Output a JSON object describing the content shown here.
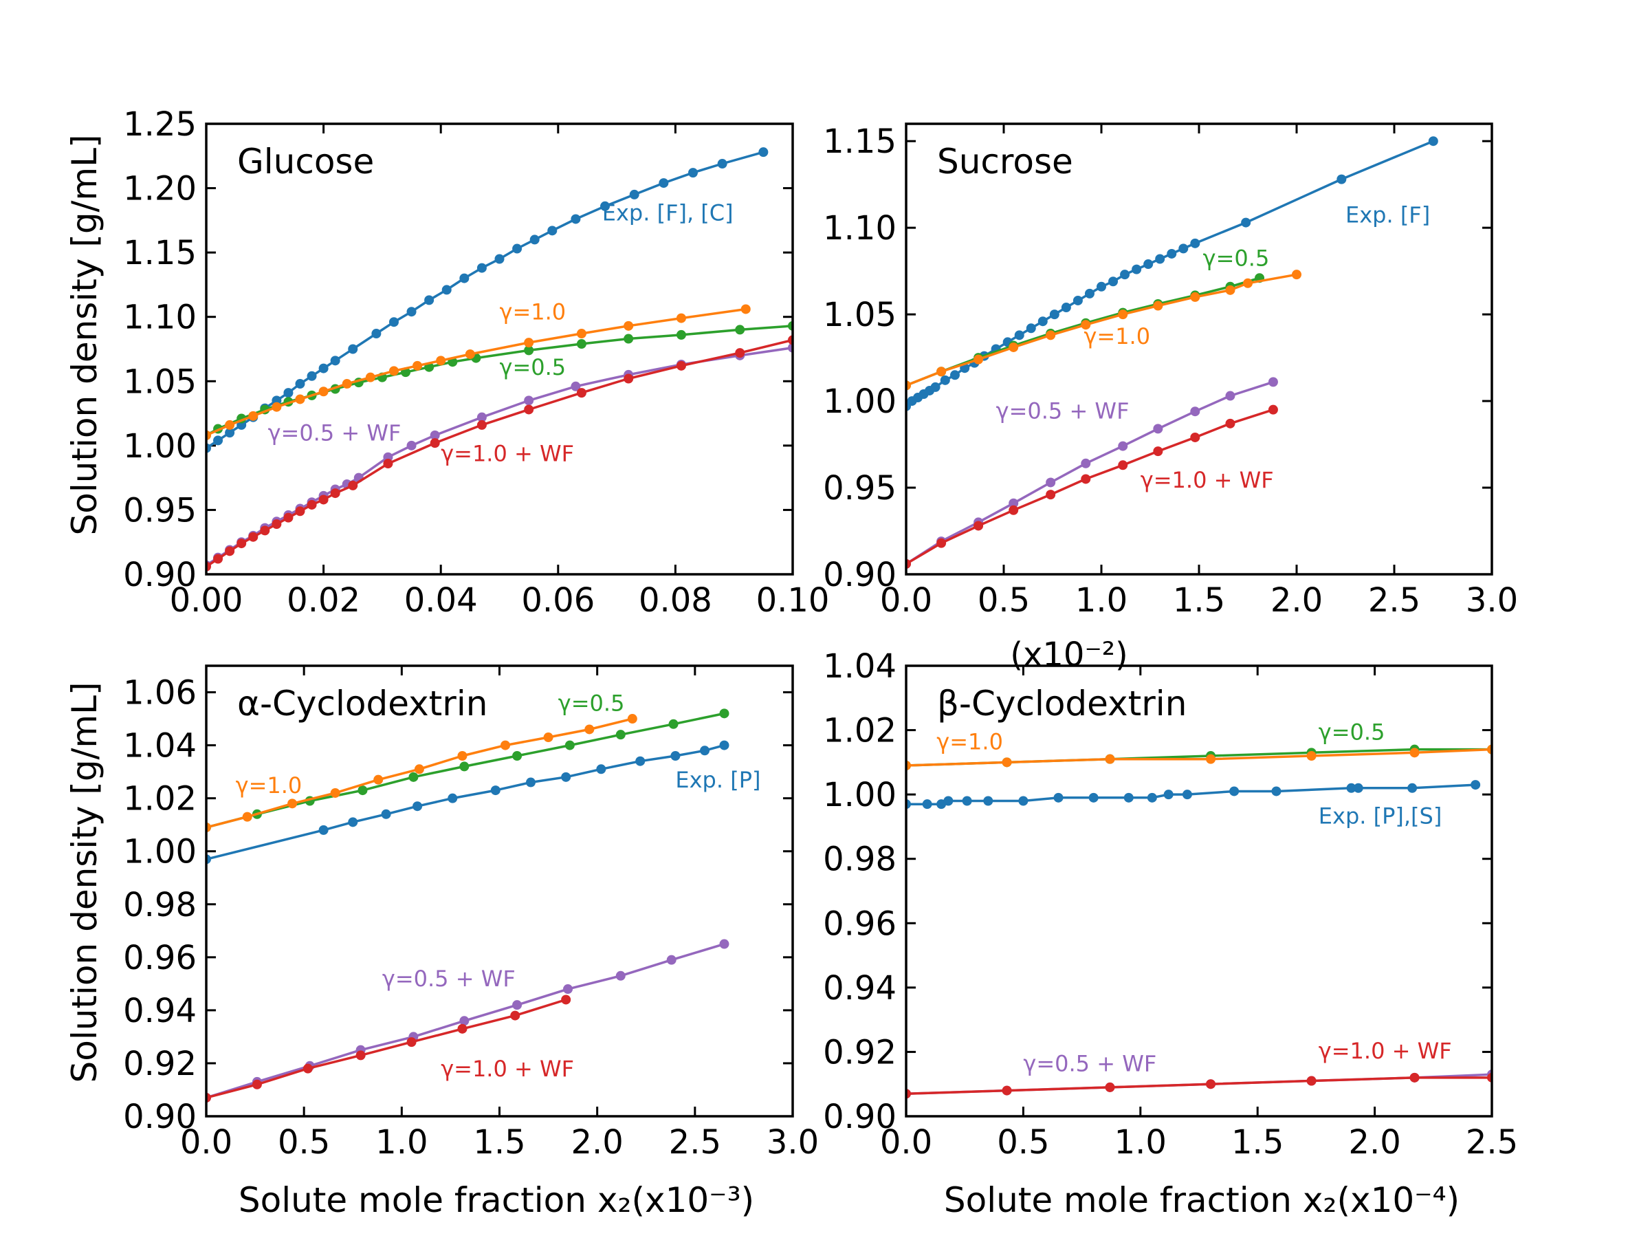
{
  "figure": {
    "ylabel_top": "Solution density [g/mL]",
    "ylabel_bottom": "Solution density [g/mL]",
    "xlabel_left": "Solute mole fraction x₂(x10⁻³)",
    "xlabel_right": "Solute mole fraction x₂(x10⁻⁴)",
    "sucrose_multiplier": "(x10⁻²)"
  },
  "colors": {
    "exp": "#1f77b4",
    "g10": "#ff7f0e",
    "g05": "#2ca02c",
    "g10wf": "#d62728",
    "g05wf": "#9467bd"
  },
  "chart_data": [
    {
      "type": "line",
      "title": "Glucose",
      "xlim": [
        0,
        0.1
      ],
      "ylim": [
        0.9,
        1.25
      ],
      "xticks": [
        "0.00",
        "0.02",
        "0.04",
        "0.06",
        "0.08",
        "0.10"
      ],
      "yticks": [
        "0.90",
        "0.95",
        "1.00",
        "1.05",
        "1.10",
        "1.15",
        "1.20",
        "1.25"
      ],
      "series": [
        {
          "name": "Exp. [F], [C]",
          "color_key": "exp",
          "x": [
            0.0,
            0.002,
            0.004,
            0.006,
            0.008,
            0.01,
            0.012,
            0.014,
            0.016,
            0.018,
            0.02,
            0.022,
            0.025,
            0.029,
            0.032,
            0.035,
            0.038,
            0.041,
            0.044,
            0.047,
            0.05,
            0.053,
            0.056,
            0.059,
            0.063,
            0.068,
            0.073,
            0.078,
            0.083,
            0.088,
            0.095
          ],
          "y": [
            0.998,
            1.004,
            1.01,
            1.016,
            1.022,
            1.029,
            1.035,
            1.041,
            1.048,
            1.054,
            1.06,
            1.066,
            1.075,
            1.087,
            1.096,
            1.104,
            1.113,
            1.121,
            1.13,
            1.138,
            1.145,
            1.153,
            1.16,
            1.167,
            1.176,
            1.186,
            1.195,
            1.204,
            1.212,
            1.219,
            1.228
          ]
        },
        {
          "name": "γ=1.0",
          "color_key": "g10",
          "x": [
            0.0,
            0.004,
            0.008,
            0.012,
            0.016,
            0.02,
            0.024,
            0.028,
            0.032,
            0.036,
            0.04,
            0.045,
            0.055,
            0.064,
            0.072,
            0.081,
            0.092
          ],
          "y": [
            1.008,
            1.016,
            1.023,
            1.03,
            1.036,
            1.042,
            1.048,
            1.053,
            1.058,
            1.062,
            1.066,
            1.071,
            1.08,
            1.087,
            1.093,
            1.099,
            1.106
          ]
        },
        {
          "name": "γ=0.5",
          "color_key": "g05",
          "x": [
            0.0,
            0.002,
            0.006,
            0.01,
            0.014,
            0.018,
            0.022,
            0.026,
            0.03,
            0.034,
            0.038,
            0.042,
            0.046,
            0.055,
            0.064,
            0.072,
            0.081,
            0.091,
            0.1
          ],
          "y": [
            1.008,
            1.013,
            1.021,
            1.028,
            1.034,
            1.039,
            1.044,
            1.049,
            1.053,
            1.057,
            1.061,
            1.065,
            1.068,
            1.074,
            1.079,
            1.083,
            1.086,
            1.09,
            1.093
          ]
        },
        {
          "name": "γ=1.0 + WF",
          "color_key": "g10wf",
          "x": [
            0.0,
            0.002,
            0.004,
            0.006,
            0.008,
            0.01,
            0.012,
            0.014,
            0.016,
            0.018,
            0.02,
            0.022,
            0.025,
            0.031,
            0.039,
            0.047,
            0.055,
            0.064,
            0.072,
            0.081,
            0.091,
            0.1
          ],
          "y": [
            0.906,
            0.912,
            0.918,
            0.924,
            0.929,
            0.934,
            0.939,
            0.944,
            0.949,
            0.954,
            0.958,
            0.963,
            0.969,
            0.986,
            1.002,
            1.016,
            1.028,
            1.041,
            1.052,
            1.062,
            1.072,
            1.082
          ]
        },
        {
          "name": "γ=0.5 + WF",
          "color_key": "g05wf",
          "x": [
            0.0,
            0.002,
            0.004,
            0.006,
            0.008,
            0.01,
            0.012,
            0.014,
            0.016,
            0.018,
            0.02,
            0.022,
            0.024,
            0.026,
            0.031,
            0.035,
            0.039,
            0.047,
            0.055,
            0.063,
            0.072,
            0.081,
            0.091,
            0.1
          ],
          "y": [
            0.907,
            0.913,
            0.919,
            0.925,
            0.93,
            0.936,
            0.941,
            0.946,
            0.951,
            0.956,
            0.961,
            0.966,
            0.97,
            0.975,
            0.991,
            1.0,
            1.008,
            1.022,
            1.035,
            1.046,
            1.055,
            1.063,
            1.07,
            1.076
          ]
        }
      ],
      "annotations": [
        {
          "text": "Exp. [F], [C]",
          "color_key": "exp",
          "x": 0.0675,
          "y": 1.175
        },
        {
          "text": "γ=1.0",
          "color_key": "g10",
          "x": 0.05,
          "y": 1.098
        },
        {
          "text": "γ=0.5",
          "color_key": "g05",
          "x": 0.05,
          "y": 1.055
        },
        {
          "text": "γ=0.5 + WF",
          "color_key": "g05wf",
          "x": 0.0105,
          "y": 1.004
        },
        {
          "text": "γ=1.0 + WF",
          "color_key": "g10wf",
          "x": 0.04,
          "y": 0.988
        }
      ]
    },
    {
      "type": "line",
      "title": "Sucrose",
      "xlim": [
        0,
        3.0
      ],
      "ylim": [
        0.9,
        1.16
      ],
      "xticks": [
        "0.0",
        "0.5",
        "1.0",
        "1.5",
        "2.0",
        "2.5",
        "3.0"
      ],
      "yticks": [
        "0.90",
        "0.95",
        "1.00",
        "1.05",
        "1.10",
        "1.15"
      ],
      "series": [
        {
          "name": "Exp. [F]",
          "color_key": "exp",
          "x": [
            0.0,
            0.03,
            0.06,
            0.09,
            0.12,
            0.15,
            0.2,
            0.25,
            0.3,
            0.35,
            0.4,
            0.46,
            0.52,
            0.58,
            0.64,
            0.7,
            0.76,
            0.82,
            0.88,
            0.94,
            1.0,
            1.06,
            1.12,
            1.18,
            1.24,
            1.3,
            1.36,
            1.42,
            1.48,
            1.74,
            2.23,
            2.7
          ],
          "y": [
            0.997,
            1.0,
            1.002,
            1.004,
            1.006,
            1.008,
            1.012,
            1.015,
            1.019,
            1.022,
            1.026,
            1.03,
            1.034,
            1.038,
            1.042,
            1.046,
            1.05,
            1.054,
            1.058,
            1.062,
            1.066,
            1.069,
            1.073,
            1.076,
            1.079,
            1.082,
            1.085,
            1.088,
            1.091,
            1.103,
            1.128,
            1.15
          ]
        },
        {
          "name": "γ=1.0",
          "color_key": "g10",
          "x": [
            0.0,
            0.18,
            0.37,
            0.55,
            0.74,
            0.92,
            1.11,
            1.29,
            1.48,
            1.66,
            1.75,
            2.0
          ],
          "y": [
            1.009,
            1.017,
            1.024,
            1.031,
            1.038,
            1.044,
            1.05,
            1.055,
            1.06,
            1.064,
            1.068,
            1.073
          ]
        },
        {
          "name": "γ=0.5",
          "color_key": "g05",
          "x": [
            0.0,
            0.18,
            0.37,
            0.55,
            0.74,
            0.92,
            1.11,
            1.29,
            1.48,
            1.66,
            1.81
          ],
          "y": [
            1.009,
            1.017,
            1.025,
            1.032,
            1.039,
            1.045,
            1.051,
            1.056,
            1.061,
            1.066,
            1.071
          ]
        },
        {
          "name": "γ=1.0 + WF",
          "color_key": "g10wf",
          "x": [
            0.0,
            0.18,
            0.37,
            0.55,
            0.74,
            0.92,
            1.11,
            1.29,
            1.48,
            1.66,
            1.88
          ],
          "y": [
            0.906,
            0.918,
            0.928,
            0.937,
            0.946,
            0.955,
            0.963,
            0.971,
            0.979,
            0.987,
            0.995
          ]
        },
        {
          "name": "γ=0.5 + WF",
          "color_key": "g05wf",
          "x": [
            0.0,
            0.18,
            0.37,
            0.55,
            0.74,
            0.92,
            1.11,
            1.29,
            1.48,
            1.66,
            1.88
          ],
          "y": [
            0.906,
            0.919,
            0.93,
            0.941,
            0.953,
            0.964,
            0.974,
            0.984,
            0.994,
            1.003,
            1.011
          ]
        }
      ],
      "annotations": [
        {
          "text": "Exp. [F]",
          "color_key": "exp",
          "x": 2.25,
          "y": 1.103
        },
        {
          "text": "γ=0.5",
          "color_key": "g05",
          "x": 1.52,
          "y": 1.078
        },
        {
          "text": "γ=1.0",
          "color_key": "g10",
          "x": 0.91,
          "y": 1.033
        },
        {
          "text": "γ=0.5 + WF",
          "color_key": "g05wf",
          "x": 0.46,
          "y": 0.99
        },
        {
          "text": "γ=1.0 + WF",
          "color_key": "g10wf",
          "x": 1.2,
          "y": 0.95
        }
      ]
    },
    {
      "type": "line",
      "title": "α-Cyclodextrin",
      "xlim": [
        0,
        3.0
      ],
      "ylim": [
        0.9,
        1.07
      ],
      "xticks": [
        "0.0",
        "0.5",
        "1.0",
        "1.5",
        "2.0",
        "2.5",
        "3.0"
      ],
      "yticks": [
        "0.90",
        "0.92",
        "0.94",
        "0.96",
        "0.98",
        "1.00",
        "1.02",
        "1.04",
        "1.06"
      ],
      "series": [
        {
          "name": "Exp. [P]",
          "color_key": "exp",
          "x": [
            0.0,
            0.6,
            0.75,
            0.92,
            1.08,
            1.26,
            1.48,
            1.66,
            1.84,
            2.02,
            2.22,
            2.4,
            2.55,
            2.65
          ],
          "y": [
            0.997,
            1.008,
            1.011,
            1.014,
            1.017,
            1.02,
            1.023,
            1.026,
            1.028,
            1.031,
            1.034,
            1.036,
            1.038,
            1.04
          ]
        },
        {
          "name": "γ=1.0",
          "color_key": "g10",
          "x": [
            0.0,
            0.21,
            0.44,
            0.66,
            0.88,
            1.09,
            1.31,
            1.53,
            1.75,
            1.96,
            2.18
          ],
          "y": [
            1.009,
            1.013,
            1.018,
            1.022,
            1.027,
            1.031,
            1.036,
            1.04,
            1.043,
            1.046,
            1.05
          ]
        },
        {
          "name": "γ=0.5",
          "color_key": "g05",
          "x": [
            0.0,
            0.26,
            0.53,
            0.8,
            1.06,
            1.32,
            1.59,
            1.86,
            2.12,
            2.39,
            2.65
          ],
          "y": [
            1.009,
            1.014,
            1.019,
            1.023,
            1.028,
            1.032,
            1.036,
            1.04,
            1.044,
            1.048,
            1.052
          ]
        },
        {
          "name": "γ=1.0 + WF",
          "color_key": "g10wf",
          "x": [
            0.0,
            0.26,
            0.52,
            0.79,
            1.05,
            1.31,
            1.58,
            1.84
          ],
          "y": [
            0.907,
            0.912,
            0.918,
            0.923,
            0.928,
            0.933,
            0.938,
            0.944
          ]
        },
        {
          "name": "γ=0.5 + WF",
          "color_key": "g05wf",
          "x": [
            0.0,
            0.26,
            0.53,
            0.79,
            1.06,
            1.32,
            1.59,
            1.85,
            2.12,
            2.38,
            2.65
          ],
          "y": [
            0.907,
            0.913,
            0.919,
            0.925,
            0.93,
            0.936,
            0.942,
            0.948,
            0.953,
            0.959,
            0.965
          ]
        }
      ],
      "annotations": [
        {
          "text": "γ=0.5",
          "color_key": "g05",
          "x": 1.8,
          "y": 1.053
        },
        {
          "text": "γ=1.0",
          "color_key": "g10",
          "x": 0.15,
          "y": 1.022
        },
        {
          "text": "Exp. [P]",
          "color_key": "exp",
          "x": 2.4,
          "y": 1.024
        },
        {
          "text": "γ=0.5 + WF",
          "color_key": "g05wf",
          "x": 0.9,
          "y": 0.949
        },
        {
          "text": "γ=1.0 + WF",
          "color_key": "g10wf",
          "x": 1.2,
          "y": 0.915
        }
      ]
    },
    {
      "type": "line",
      "title": "β-Cyclodextrin",
      "xlim": [
        0,
        2.5
      ],
      "ylim": [
        0.9,
        1.04
      ],
      "xticks": [
        "0.0",
        "0.5",
        "1.0",
        "1.5",
        "2.0",
        "2.5"
      ],
      "yticks": [
        "0.90",
        "0.92",
        "0.94",
        "0.96",
        "0.98",
        "1.00",
        "1.02",
        "1.04"
      ],
      "series": [
        {
          "name": "Exp. [P],[S]",
          "color_key": "exp",
          "x": [
            0.0,
            0.09,
            0.15,
            0.18,
            0.26,
            0.35,
            0.5,
            0.65,
            0.8,
            0.95,
            1.05,
            1.12,
            1.2,
            1.4,
            1.58,
            1.9,
            1.93,
            2.16,
            2.43
          ],
          "y": [
            0.997,
            0.997,
            0.997,
            0.998,
            0.998,
            0.998,
            0.998,
            0.999,
            0.999,
            0.999,
            0.999,
            1.0,
            1.0,
            1.001,
            1.001,
            1.002,
            1.002,
            1.002,
            1.003
          ]
        },
        {
          "name": "γ=1.0",
          "color_key": "g10",
          "x": [
            0.0,
            0.43,
            0.87,
            1.3,
            1.73,
            2.17,
            2.5
          ],
          "y": [
            1.009,
            1.01,
            1.011,
            1.011,
            1.012,
            1.013,
            1.014
          ]
        },
        {
          "name": "γ=0.5",
          "color_key": "g05",
          "x": [
            0.0,
            0.43,
            0.87,
            1.3,
            1.73,
            2.17,
            2.5
          ],
          "y": [
            1.009,
            1.01,
            1.011,
            1.012,
            1.013,
            1.014,
            1.014
          ]
        },
        {
          "name": "γ=1.0 + WF",
          "color_key": "g10wf",
          "x": [
            0.0,
            0.43,
            0.87,
            1.3,
            1.73,
            2.17,
            2.5
          ],
          "y": [
            0.907,
            0.908,
            0.909,
            0.91,
            0.911,
            0.912,
            0.912
          ]
        },
        {
          "name": "γ=0.5 + WF",
          "color_key": "g05wf",
          "x": [
            0.0,
            0.43,
            0.87,
            1.3,
            1.73,
            2.17,
            2.5
          ],
          "y": [
            0.907,
            0.908,
            0.909,
            0.91,
            0.911,
            0.912,
            0.913
          ]
        }
      ],
      "annotations": [
        {
          "text": "γ=1.0",
          "color_key": "g10",
          "x": 0.13,
          "y": 1.014
        },
        {
          "text": "γ=0.5",
          "color_key": "g05",
          "x": 1.76,
          "y": 1.017
        },
        {
          "text": "Exp. [P],[S]",
          "color_key": "exp",
          "x": 1.76,
          "y": 0.991
        },
        {
          "text": "γ=0.5 + WF",
          "color_key": "g05wf",
          "x": 0.5,
          "y": 0.914
        },
        {
          "text": "γ=1.0 + WF",
          "color_key": "g10wf",
          "x": 1.76,
          "y": 0.918
        }
      ]
    }
  ]
}
